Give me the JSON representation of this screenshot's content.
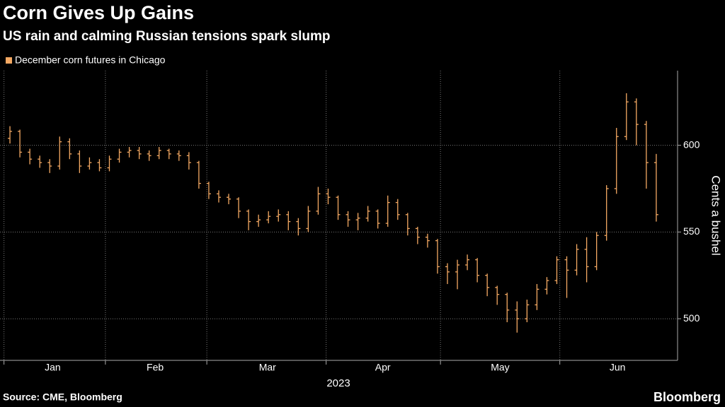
{
  "chart_data": {
    "type": "ohlc",
    "title": "Corn Gives Up Gains",
    "subtitle": "US rain and calming Russian tensions spark slump",
    "y_label": "Cents a bushel",
    "x_label": "2023",
    "source": "Source: CME, Bloomberg",
    "logo": "Bloomberg",
    "series": [
      {
        "name": "December corn futures in Chicago",
        "color": "#f4a963",
        "open": [
          604,
          608,
          596,
          592,
          590,
          588,
          602,
          595,
          588,
          590,
          587,
          592,
          596,
          597,
          595,
          594,
          597,
          595,
          594,
          590,
          578,
          572,
          570,
          569,
          562,
          556,
          557,
          559,
          560,
          556,
          552,
          562,
          572,
          570,
          560,
          557,
          558,
          562,
          555,
          567,
          560,
          552,
          547,
          545,
          530,
          527,
          531,
          534,
          525,
          518,
          514,
          505,
          500,
          508,
          517,
          522,
          534,
          528,
          540,
          530,
          548,
          575,
          605,
          625,
          612,
          590
        ],
        "high": [
          611,
          609,
          598,
          594,
          592,
          605,
          604,
          597,
          593,
          592,
          594,
          598,
          599,
          599,
          597,
          599,
          598,
          597,
          596,
          591,
          579,
          574,
          572,
          570,
          563,
          560,
          562,
          563,
          562,
          558,
          565,
          576,
          575,
          571,
          562,
          561,
          565,
          563,
          571,
          569,
          561,
          553,
          549,
          546,
          532,
          534,
          537,
          535,
          526,
          519,
          515,
          510,
          511,
          520,
          524,
          536,
          536,
          543,
          547,
          550,
          577,
          610,
          630,
          627,
          614,
          595
        ],
        "low": [
          601,
          593,
          589,
          587,
          584,
          586,
          592,
          584,
          586,
          585,
          585,
          590,
          593,
          592,
          591,
          592,
          592,
          591,
          586,
          575,
          569,
          567,
          566,
          558,
          551,
          553,
          555,
          556,
          551,
          548,
          550,
          560,
          566,
          557,
          553,
          551,
          556,
          552,
          553,
          557,
          548,
          543,
          541,
          526,
          520,
          517,
          528,
          521,
          513,
          508,
          498,
          492,
          498,
          505,
          514,
          520,
          512,
          525,
          521,
          528,
          545,
          572,
          603,
          600,
          575,
          556
        ],
        "close": [
          608,
          596,
          592,
          590,
          588,
          602,
          595,
          588,
          590,
          587,
          592,
          596,
          597,
          595,
          594,
          597,
          595,
          594,
          590,
          578,
          572,
          570,
          569,
          562,
          556,
          557,
          559,
          560,
          556,
          552,
          562,
          572,
          570,
          560,
          557,
          558,
          562,
          555,
          567,
          560,
          552,
          547,
          545,
          530,
          527,
          531,
          534,
          525,
          518,
          514,
          505,
          500,
          508,
          517,
          522,
          534,
          528,
          540,
          530,
          548,
          575,
          605,
          625,
          612,
          590,
          560
        ]
      }
    ],
    "xlim": [
      -1,
      67
    ],
    "xticks": [
      {
        "value": 4.3,
        "label": "Jan"
      },
      {
        "value": 14.6,
        "label": "Feb"
      },
      {
        "value": 25.9,
        "label": "Mar"
      },
      {
        "value": 37.5,
        "label": "Apr"
      },
      {
        "value": 49.3,
        "label": "May"
      },
      {
        "value": 61.1,
        "label": "Jun"
      }
    ],
    "xgrid": [
      -0.6,
      9.6,
      19.8,
      31.8,
      43.3,
      55.3
    ],
    "ylim": [
      476,
      643
    ],
    "yticks": [
      500,
      550,
      600
    ],
    "grid": true
  }
}
